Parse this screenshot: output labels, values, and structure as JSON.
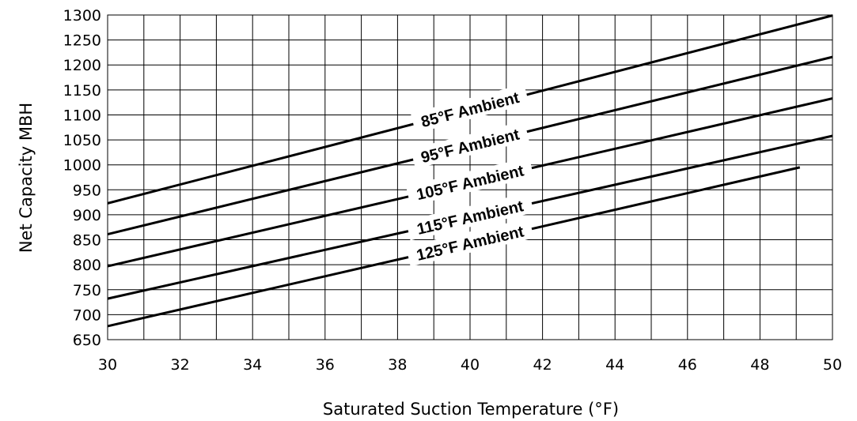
{
  "chart_data": {
    "type": "line",
    "title": "",
    "xlabel": "Saturated Suction Temperature (°F)",
    "ylabel": "Net Capacity MBH",
    "xlim": [
      30,
      50
    ],
    "ylim": [
      650,
      1300
    ],
    "xticks": [
      30,
      32,
      34,
      36,
      38,
      40,
      42,
      44,
      46,
      48,
      50
    ],
    "yticks": [
      650,
      700,
      750,
      800,
      850,
      900,
      950,
      1000,
      1050,
      1100,
      1150,
      1200,
      1250,
      1300
    ],
    "grid": true,
    "legend": "none",
    "series": [
      {
        "name": "85°F Ambient",
        "x": [
          30,
          50
        ],
        "y": [
          923,
          1299
        ]
      },
      {
        "name": "95°F Ambient",
        "x": [
          30,
          50
        ],
        "y": [
          861,
          1216
        ]
      },
      {
        "name": "105°F Ambient",
        "x": [
          30,
          50
        ],
        "y": [
          797,
          1133
        ]
      },
      {
        "name": "115°F Ambient",
        "x": [
          30,
          50
        ],
        "y": [
          732,
          1058
        ]
      },
      {
        "name": "125°F Ambient",
        "x": [
          30,
          49.1
        ],
        "y": [
          677,
          995
        ]
      }
    ]
  }
}
